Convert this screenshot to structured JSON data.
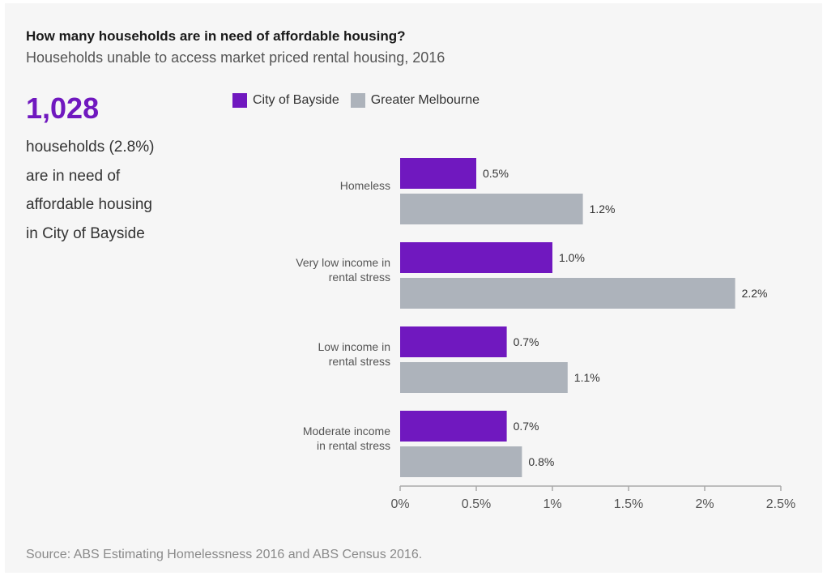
{
  "header": {
    "title": "How many households are in need of affordable housing?",
    "subtitle": "Households unable to access market priced rental housing, 2016"
  },
  "headline": {
    "number": "1,028",
    "lines": [
      "households (2.8%)",
      "are in need of",
      "affordable housing",
      "in City of Bayside"
    ]
  },
  "footer": {
    "source": "Source: ABS Estimating Homelessness 2016 and ABS Census 2016."
  },
  "colors": {
    "bayside": "#7018bf",
    "melbourne": "#adb3bb",
    "axis": "#aaaaaa",
    "card_background": "#f6f6f6"
  },
  "chart_data": {
    "type": "bar",
    "orientation": "horizontal",
    "title": "How many households are in need of affordable housing?",
    "subtitle": "Households unable to access market priced rental housing, 2016",
    "categories": [
      [
        "Homeless"
      ],
      [
        "Very low income in",
        "rental stress"
      ],
      [
        "Low income in",
        "rental stress"
      ],
      [
        "Moderate income",
        "in rental stress"
      ]
    ],
    "series": [
      {
        "name": "City of Bayside",
        "values": [
          0.5,
          1.0,
          0.7,
          0.7
        ],
        "labels": [
          "0.5%",
          "1.0%",
          "0.7%",
          "0.7%"
        ]
      },
      {
        "name": "Greater Melbourne",
        "values": [
          1.2,
          2.2,
          1.1,
          0.8
        ],
        "labels": [
          "1.2%",
          "2.2%",
          "1.1%",
          "0.8%"
        ]
      }
    ],
    "xlim": [
      0,
      2.5
    ],
    "x_ticks": [
      0,
      0.5,
      1,
      1.5,
      2,
      2.5
    ],
    "x_tick_labels": [
      "0%",
      "0.5%",
      "1%",
      "1.5%",
      "2%",
      "2.5%"
    ],
    "legend_position": "top",
    "grid": false
  }
}
